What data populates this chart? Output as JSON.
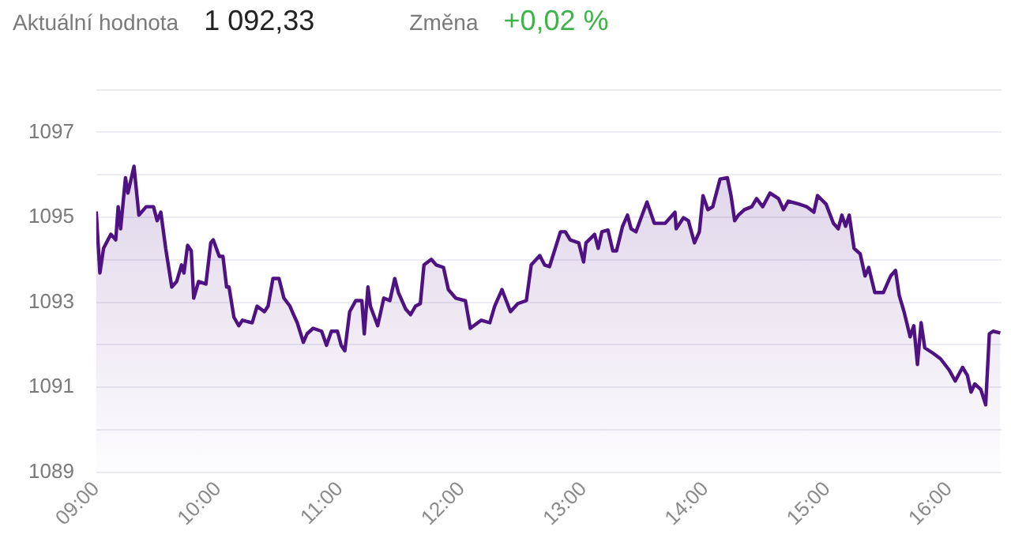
{
  "chart_data": {
    "type": "area",
    "annotations": [
      "Aktuální hodnota",
      "1 092,33",
      "Změna",
      "+0,02 %"
    ],
    "series": [
      {
        "color": "#4e1283",
        "x": [
          9.0,
          9.03,
          9.06,
          9.12,
          9.16,
          9.18,
          9.2,
          9.24,
          9.26,
          9.31,
          9.35,
          9.41,
          9.47,
          9.5,
          9.53,
          9.57,
          9.62,
          9.66,
          9.7,
          9.72,
          9.75,
          9.78,
          9.8,
          9.84,
          9.9,
          9.94,
          9.96,
          10.01,
          10.04,
          10.07,
          10.09,
          10.13,
          10.17,
          10.2,
          10.28,
          10.32,
          10.38,
          10.41,
          10.45,
          10.5,
          10.54,
          10.59,
          10.62,
          10.65,
          10.7,
          10.73,
          10.78,
          10.85,
          10.89,
          10.93,
          10.98,
          11.01,
          11.04,
          11.08,
          11.13,
          11.18,
          11.2,
          11.23,
          11.25,
          11.31,
          11.36,
          11.41,
          11.45,
          11.48,
          11.54,
          11.58,
          11.62,
          11.66,
          11.69,
          11.75,
          11.79,
          11.85,
          11.89,
          11.95,
          12.03,
          12.07,
          12.16,
          12.23,
          12.27,
          12.33,
          12.4,
          12.46,
          12.53,
          12.57,
          12.64,
          12.68,
          12.72,
          12.81,
          12.85,
          12.89,
          12.96,
          13.0,
          13.02,
          13.09,
          13.12,
          13.15,
          13.2,
          13.24,
          13.27,
          13.32,
          13.36,
          13.39,
          13.43,
          13.48,
          13.52,
          13.58,
          13.67,
          13.75,
          13.76,
          13.82,
          13.86,
          13.91,
          13.95,
          13.98,
          14.02,
          14.06,
          14.12,
          14.18,
          14.21,
          14.24,
          14.27,
          14.32,
          14.38,
          14.42,
          14.47,
          14.53,
          14.6,
          14.64,
          14.68,
          14.77,
          14.83,
          14.89,
          14.92,
          14.99,
          15.05,
          15.09,
          15.12,
          15.15,
          15.18,
          15.22,
          15.27,
          15.31,
          15.34,
          15.39,
          15.46,
          15.52,
          15.56,
          15.59,
          15.63,
          15.68,
          15.71,
          15.74,
          15.77,
          15.8,
          15.87,
          15.93,
          16.0,
          16.05,
          16.11,
          16.15,
          16.18,
          16.21,
          16.26,
          16.3,
          16.33,
          16.36,
          16.42
        ],
        "values": [
          1095.14,
          1093.69,
          1094.27,
          1094.6,
          1094.47,
          1095.25,
          1094.73,
          1095.93,
          1095.57,
          1096.2,
          1095.05,
          1095.25,
          1095.25,
          1094.92,
          1095.12,
          1094.27,
          1093.36,
          1093.49,
          1093.88,
          1093.69,
          1094.34,
          1094.21,
          1093.1,
          1093.49,
          1093.43,
          1094.4,
          1094.47,
          1094.08,
          1094.08,
          1093.36,
          1093.36,
          1092.65,
          1092.45,
          1092.58,
          1092.52,
          1092.91,
          1092.78,
          1092.91,
          1093.56,
          1093.56,
          1093.1,
          1092.91,
          1092.71,
          1092.52,
          1092.06,
          1092.26,
          1092.39,
          1092.32,
          1091.99,
          1092.32,
          1092.32,
          1091.99,
          1091.86,
          1092.78,
          1093.04,
          1093.04,
          1092.26,
          1093.36,
          1092.91,
          1092.45,
          1093.1,
          1093.04,
          1093.56,
          1093.23,
          1092.84,
          1092.71,
          1092.91,
          1092.97,
          1093.88,
          1094.01,
          1093.88,
          1093.82,
          1093.3,
          1093.1,
          1093.04,
          1092.39,
          1092.58,
          1092.52,
          1092.91,
          1093.3,
          1092.78,
          1092.97,
          1093.04,
          1093.88,
          1094.1,
          1093.88,
          1093.84,
          1094.66,
          1094.66,
          1094.47,
          1094.4,
          1093.95,
          1094.4,
          1094.6,
          1094.27,
          1094.66,
          1094.7,
          1094.21,
          1094.21,
          1094.79,
          1095.05,
          1094.73,
          1094.66,
          1095.05,
          1095.36,
          1094.86,
          1094.86,
          1095.12,
          1094.73,
          1094.99,
          1094.92,
          1094.4,
          1094.66,
          1095.51,
          1095.18,
          1095.25,
          1095.9,
          1095.93,
          1095.51,
          1094.92,
          1095.05,
          1095.18,
          1095.25,
          1095.44,
          1095.25,
          1095.57,
          1095.44,
          1095.18,
          1095.38,
          1095.31,
          1095.25,
          1095.12,
          1095.51,
          1095.31,
          1094.86,
          1094.73,
          1095.05,
          1094.79,
          1095.05,
          1094.27,
          1094.14,
          1093.62,
          1093.82,
          1093.23,
          1093.23,
          1093.62,
          1093.75,
          1093.17,
          1092.78,
          1092.19,
          1092.45,
          1091.54,
          1092.52,
          1091.93,
          1091.8,
          1091.67,
          1091.41,
          1091.15,
          1091.47,
          1091.28,
          1090.89,
          1091.08,
          1090.95,
          1090.59,
          1092.26,
          1092.32,
          1092.28
        ]
      }
    ],
    "xlim": [
      9,
      16.43
    ],
    "xticks": [
      {
        "value": 9,
        "label": "09:00"
      },
      {
        "value": 10,
        "label": "10:00"
      },
      {
        "value": 11,
        "label": "11:00"
      },
      {
        "value": 12,
        "label": "12:00"
      },
      {
        "value": 13,
        "label": "13:00"
      },
      {
        "value": 14,
        "label": "14:00"
      },
      {
        "value": 15,
        "label": "15:00"
      },
      {
        "value": 16,
        "label": "16:00"
      }
    ],
    "ylim": [
      1089,
      1098
    ],
    "yticks": [
      1089,
      {
        "value": 1090,
        "label": null
      },
      1091,
      {
        "value": 1092,
        "label": null
      },
      1093,
      {
        "value": 1094,
        "label": null
      },
      1095,
      {
        "value": 1096,
        "label": null
      },
      1097,
      {
        "value": 1098,
        "label": null
      }
    ],
    "grid": "y",
    "legend": false,
    "marker": "none",
    "line_style": "solid"
  }
}
